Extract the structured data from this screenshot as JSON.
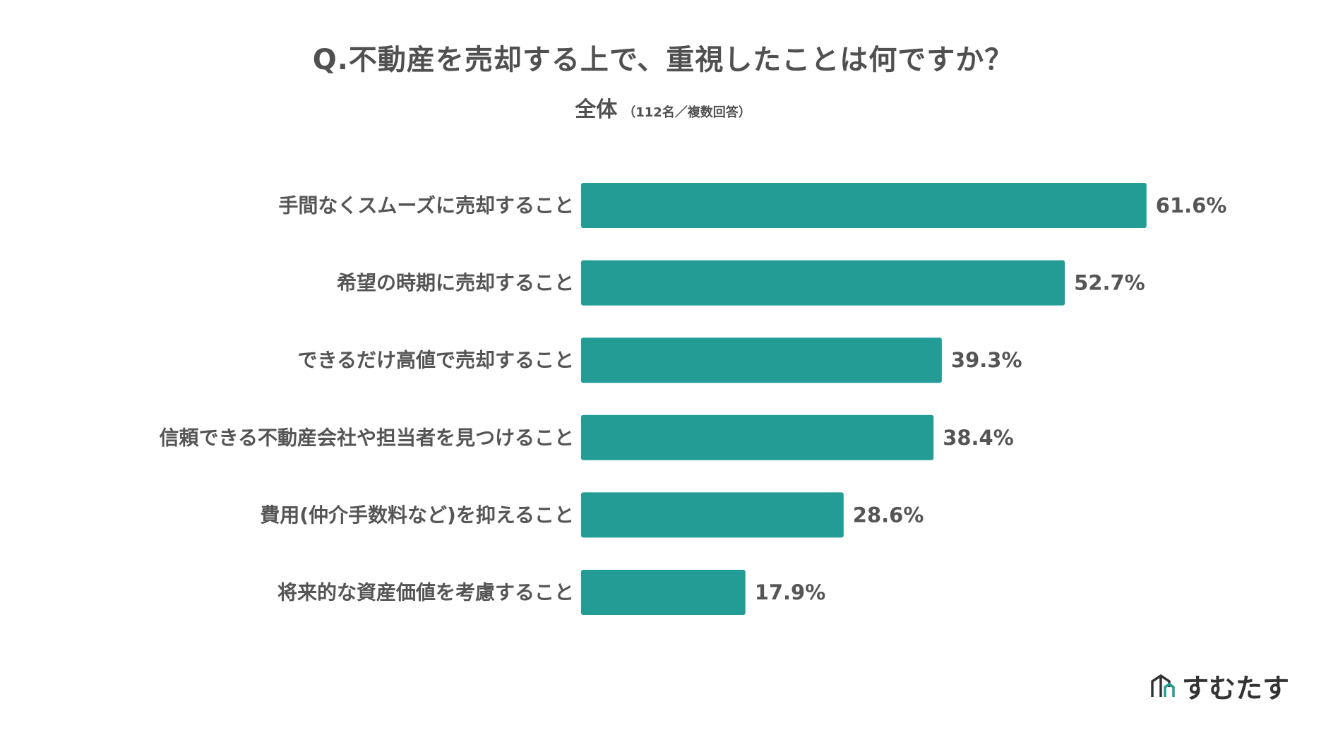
{
  "header": {
    "title": "Q.不動産を売却する上で、重視したことは何ですか？",
    "subtitle": "全体",
    "subtitle_note": "（112名／複数回答）"
  },
  "chart_data": {
    "type": "bar",
    "orientation": "horizontal",
    "categories": [
      "手間なくスムーズに売却すること",
      "希望の時期に売却すること",
      "できるだけ高値で売却すること",
      "信頼できる不動産会社や担当者を見つけること",
      "費用(仲介手数料など)を抑えること",
      "将来的な資産価値を考慮すること"
    ],
    "values": [
      61.6,
      52.7,
      39.3,
      38.4,
      28.6,
      17.9
    ],
    "value_labels": [
      "61.6%",
      "52.7%",
      "39.3%",
      "38.4%",
      "28.6%",
      "17.9%"
    ],
    "unit": "%",
    "bar_color": "#229C95",
    "grid": false,
    "legend": "none"
  },
  "branding": {
    "logo_text": "すむたす",
    "logo_icon": "house-outline-icon",
    "icon_color_dark": "#333333",
    "icon_color_accent": "#229C95"
  }
}
